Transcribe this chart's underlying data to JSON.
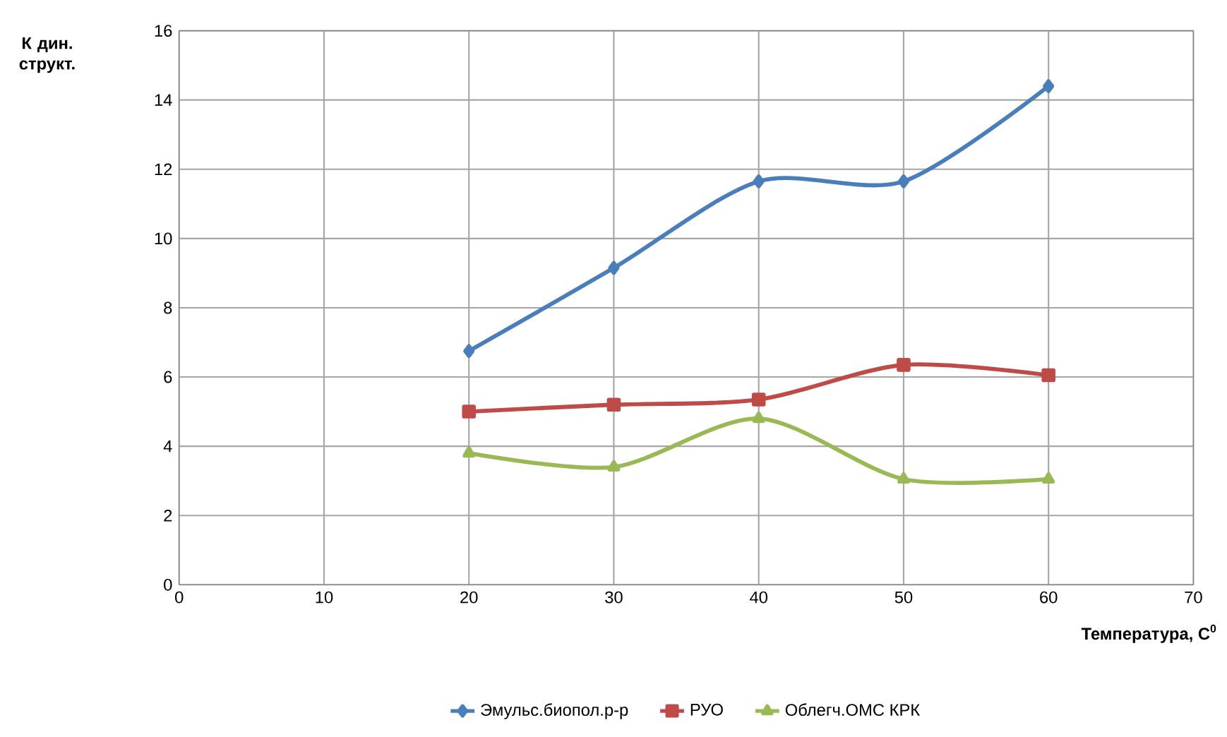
{
  "chart_data": {
    "type": "line",
    "xlabel": "Температура, С$^{0}$",
    "ylabel": "К дин. структ.",
    "x": [
      20,
      30,
      40,
      50,
      60
    ],
    "series": [
      {
        "name": "Эмульс.биопол.р-р",
        "color": "#4a7ebb",
        "marker": "diamond",
        "values": [
          6.75,
          9.15,
          11.65,
          11.65,
          14.4
        ]
      },
      {
        "name": "РУО",
        "color": "#be4b48",
        "marker": "square",
        "values": [
          5.0,
          5.2,
          5.35,
          6.35,
          6.05
        ]
      },
      {
        "name": "Облегч.ОМС КРК",
        "color": "#98b954",
        "marker": "triangle",
        "values": [
          3.8,
          3.4,
          4.8,
          3.05,
          3.05
        ]
      }
    ],
    "xlim": [
      0,
      70
    ],
    "xticks": [
      0,
      10,
      20,
      30,
      40,
      50,
      60,
      70
    ],
    "ylim": [
      0,
      16
    ],
    "yticks": [
      0,
      2,
      4,
      6,
      8,
      10,
      12,
      14,
      16
    ],
    "grid": true,
    "legend": "bottom",
    "line_style": "solid"
  }
}
